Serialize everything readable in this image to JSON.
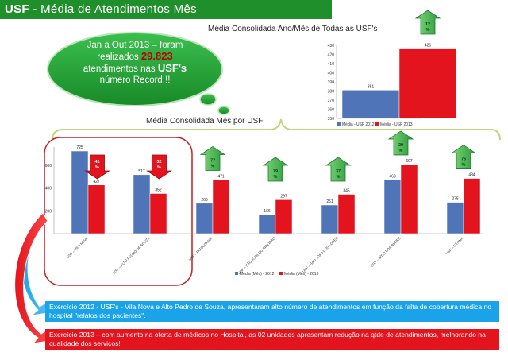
{
  "header": {
    "title_bold": "USF",
    "title_rest": " - Média de Atendimentos  Mês"
  },
  "cloud": {
    "line1": "Jan a Out 2013 – foram",
    "line2_pre": "realizados",
    "line2_num": "29.823",
    "line3_pre": "atendimentos nas",
    "line3_usf": "USF's",
    "line4": "número Record!!!"
  },
  "colors": {
    "series_2012": "#4f75b8",
    "series_2013": "#e3141d",
    "banner": "#1f8f2c",
    "cloud": "#21a136",
    "arrow_up": "#3cb44a",
    "arrow_down": "#e3141d",
    "box_2012": "#1aa3e8",
    "box_2013": "#e3141d"
  },
  "icons": {
    "up": "green-up-arrow-icon",
    "down": "red-down-arrow-icon"
  },
  "chart_data": [
    {
      "type": "bar",
      "title": "Média Consolidada Ano/Mês  de Todas as USF's",
      "categories": [
        ""
      ],
      "series": [
        {
          "name": "Média - USF 2012",
          "values": [
            381
          ]
        },
        {
          "name": "Média - USF 2013",
          "values": [
            426
          ]
        }
      ],
      "yticks": [
        350,
        360,
        370,
        380,
        390,
        400,
        410,
        420,
        430
      ],
      "ylim": [
        350,
        430
      ],
      "change_badge": {
        "text": "12 %",
        "direction": "up"
      },
      "legend_position": "bottom"
    },
    {
      "type": "bar",
      "title": "Média Consolidada Mês por USF",
      "categories": [
        "USF – VILA NOVA",
        "USF – ALTO PEDRO DE SOUZA",
        "USF – PATOLITANIA",
        "USF – SÃO JOSÉ DO RIBEIRÃO",
        "USF – SÃO JOÃO DOS LOPES",
        "USF – SÍTIO DOS BURES",
        "USF – FÁTIMA"
      ],
      "series": [
        {
          "name": "Média (Mês) - 2012",
          "values": [
            725,
            517,
            266,
            166,
            251,
            469,
            275
          ]
        },
        {
          "name": "Média (Mês) - 2013",
          "values": [
            427,
            352,
            471,
            297,
            345,
            607,
            484
          ]
        }
      ],
      "yticks": [
        200,
        400,
        600
      ],
      "ylim": [
        0,
        760
      ],
      "change_badges": [
        {
          "text": "41 %",
          "direction": "down"
        },
        {
          "text": "32 %",
          "direction": "down"
        },
        {
          "text": "77 %",
          "direction": "up"
        },
        {
          "text": "79 %",
          "direction": "up"
        },
        {
          "text": "37 %",
          "direction": "up"
        },
        {
          "text": "29 %",
          "direction": "up"
        },
        {
          "text": "76 %",
          "direction": "up"
        }
      ],
      "legend_position": "bottom"
    }
  ],
  "notes": {
    "note_2012": "Exercício 2012 - USF's - Vila Nova e Alto Pedro de Souza, apresentaram  alto número de atendimentos  em função da falta de cobertura médica no hospital \"relatos dos pacientes\".",
    "note_2013": "Exercício 2013 – com aumento na oferta de médicos no Hospital, as 02 unidades apresentam redução na qtde de atendimentos, melhorando  na qualidade dos serviços!"
  }
}
